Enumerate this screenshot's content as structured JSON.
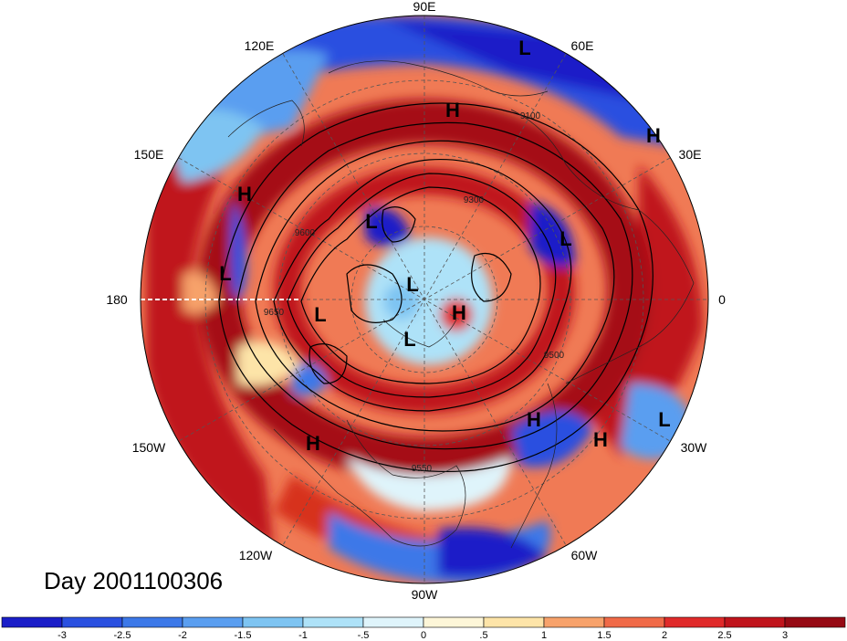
{
  "title": "Day 2001100306",
  "colors": {
    "deep_red": "#a50f15",
    "red": "#d7301f",
    "deep_blue": "#1a33c8",
    "light_blue": "#9ecae1",
    "pale": "#fdf6d8"
  },
  "longitude_labels": {
    "deg90E": "90E",
    "deg60E": "60E",
    "deg30E": "30E",
    "deg0": "0",
    "deg30W": "30W",
    "deg60W": "60W",
    "deg90W": "90W",
    "deg120W": "120W",
    "deg150W": "150W",
    "deg180": "180",
    "deg150E": "150E",
    "deg120E": "120E"
  },
  "pressure_centers": [
    {
      "id": "L-top",
      "label": "L"
    },
    {
      "id": "H-top",
      "label": "H"
    },
    {
      "id": "H-30e",
      "label": "H"
    },
    {
      "id": "H-west",
      "label": "H"
    },
    {
      "id": "L-west",
      "label": "L"
    },
    {
      "id": "L-inner-nw",
      "label": "L"
    },
    {
      "id": "L-east",
      "label": "L"
    },
    {
      "id": "L-center",
      "label": "L"
    },
    {
      "id": "H-center",
      "label": "H"
    },
    {
      "id": "L-inner-w",
      "label": "L"
    },
    {
      "id": "L-pole-s",
      "label": "L"
    },
    {
      "id": "H-se1",
      "label": "H"
    },
    {
      "id": "H-se2",
      "label": "H"
    },
    {
      "id": "L-se",
      "label": "L"
    },
    {
      "id": "H-sw",
      "label": "H"
    }
  ],
  "contour_labels": {
    "c9500e": "9500",
    "c9300": "9300",
    "c9100": "9100",
    "c9600": "9600",
    "c9550": "9550",
    "c9650": "9650"
  },
  "colorbar": {
    "ticks": [
      "-3",
      "-2.5",
      "-2",
      "-1.5",
      "-1",
      "-.5",
      "0",
      ".5",
      "1",
      "1.5",
      "2",
      "2.5",
      "3"
    ],
    "colors": [
      "#1a1ec8",
      "#2a50e0",
      "#3c78e8",
      "#5a9ef0",
      "#7ec4f2",
      "#aee2f8",
      "#dff4fb",
      "#fdf6d8",
      "#fde4a8",
      "#f7a26b",
      "#f06a48",
      "#e02a2a",
      "#c0141c",
      "#960a14"
    ]
  }
}
